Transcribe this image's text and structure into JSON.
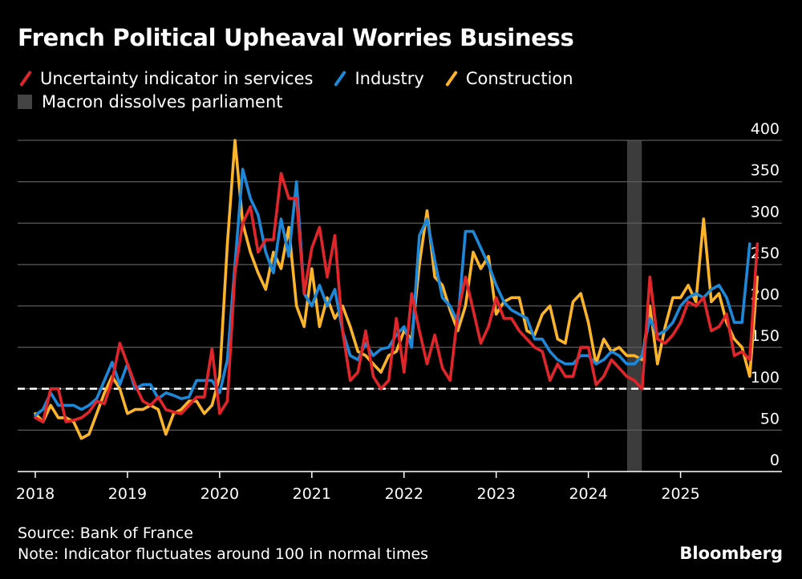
{
  "chart_data": {
    "type": "line",
    "title": "French Political Upheaval Worries Business",
    "legend": {
      "placement": "top-left",
      "entries": [
        "Uncertainty indicator in services",
        "Industry",
        "Construction"
      ],
      "shade_label": "Macron dissolves parliament"
    },
    "colors": {
      "services": "#e0252b",
      "industry": "#1e88d8",
      "construction": "#fcb42a",
      "shade": "#3c3c3c",
      "grid": "#5a5a5a"
    },
    "ylim": [
      0,
      400
    ],
    "y_ticks": [
      "0",
      "50",
      "100",
      "150",
      "200",
      "250",
      "300",
      "350",
      "400"
    ],
    "x_ticks": [
      "2018",
      "2019",
      "2020",
      "2021",
      "2022",
      "2023",
      "2024",
      "2025"
    ],
    "x_start": 2018.0,
    "x_step": 0.0833333,
    "reference_line": 100,
    "shaded_range": [
      2024.42,
      2024.58
    ],
    "series": [
      {
        "name": "Uncertainty indicator in services",
        "color": "#e0252b",
        "values": [
          65,
          60,
          100,
          100,
          60,
          62,
          65,
          72,
          85,
          82,
          110,
          155,
          130,
          105,
          85,
          80,
          90,
          75,
          72,
          70,
          80,
          90,
          90,
          148,
          70,
          85,
          240,
          300,
          320,
          265,
          280,
          280,
          360,
          330,
          330,
          215,
          270,
          295,
          235,
          285,
          170,
          110,
          120,
          170,
          115,
          100,
          110,
          185,
          120,
          215,
          170,
          130,
          165,
          125,
          110,
          190,
          235,
          195,
          155,
          175,
          210,
          185,
          185,
          170,
          160,
          150,
          145,
          110,
          130,
          115,
          115,
          150,
          150,
          105,
          115,
          135,
          125,
          115,
          110,
          100,
          235,
          160,
          155,
          165,
          180,
          205,
          200,
          210,
          170,
          175,
          190,
          140,
          145,
          135,
          275
        ]
      },
      {
        "name": "Industry",
        "color": "#1e88d8",
        "values": [
          68,
          75,
          95,
          80,
          80,
          80,
          75,
          80,
          88,
          110,
          132,
          105,
          130,
          100,
          105,
          105,
          88,
          95,
          92,
          88,
          90,
          110,
          110,
          110,
          95,
          135,
          250,
          365,
          330,
          310,
          265,
          240,
          305,
          260,
          350,
          215,
          200,
          225,
          200,
          220,
          170,
          140,
          135,
          155,
          140,
          148,
          150,
          165,
          175,
          150,
          285,
          305,
          255,
          210,
          200,
          180,
          290,
          290,
          270,
          250,
          225,
          205,
          195,
          190,
          185,
          160,
          160,
          145,
          135,
          130,
          130,
          140,
          140,
          130,
          135,
          145,
          140,
          130,
          130,
          140,
          185,
          165,
          170,
          180,
          200,
          210,
          215,
          210,
          220,
          225,
          210,
          180,
          180,
          275
        ]
      },
      {
        "name": "Construction",
        "color": "#fcb42a",
        "values": [
          70,
          60,
          80,
          65,
          65,
          60,
          40,
          45,
          70,
          95,
          115,
          100,
          70,
          75,
          75,
          80,
          75,
          45,
          70,
          75,
          85,
          85,
          70,
          80,
          115,
          275,
          400,
          300,
          265,
          240,
          220,
          265,
          245,
          295,
          200,
          175,
          245,
          175,
          210,
          185,
          200,
          175,
          145,
          140,
          130,
          120,
          140,
          145,
          170,
          160,
          250,
          315,
          235,
          225,
          195,
          170,
          200,
          265,
          245,
          260,
          190,
          205,
          210,
          210,
          170,
          165,
          190,
          200,
          160,
          155,
          205,
          215,
          180,
          130,
          160,
          145,
          150,
          140,
          140,
          135,
          200,
          130,
          175,
          210,
          210,
          225,
          205,
          305,
          205,
          215,
          180,
          160,
          150,
          115,
          235
        ]
      }
    ]
  },
  "footer": {
    "source": "Source: Bank of France",
    "note": "Note: Indicator fluctuates around 100 in normal times",
    "brand": "Bloomberg"
  }
}
